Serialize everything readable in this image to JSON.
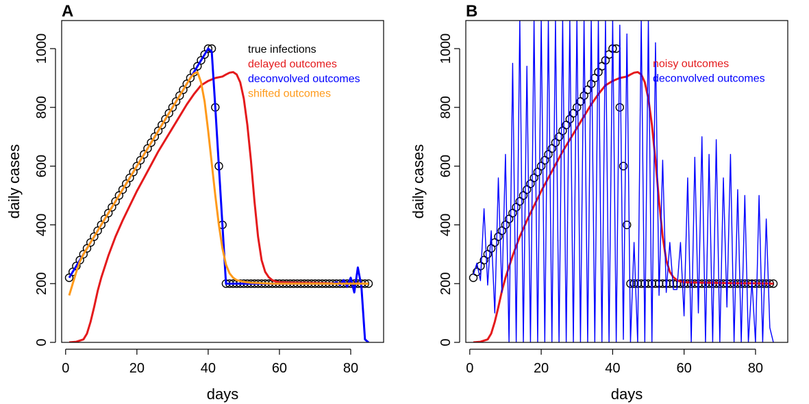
{
  "chart_data": [
    {
      "panel_label": "A",
      "type": "line",
      "xlabel": "days",
      "ylabel": "daily cases",
      "xlim": [
        1,
        85
      ],
      "ylim": [
        0,
        1100
      ],
      "xticks": [
        0,
        20,
        40,
        60,
        80
      ],
      "yticks": [
        0,
        200,
        400,
        600,
        800,
        1000
      ],
      "legend_position": "top-right",
      "legend": [
        {
          "label": "true infections",
          "color": "#000000"
        },
        {
          "label": "delayed outcomes",
          "color": "#e41a1c"
        },
        {
          "label": "deconvolved outcomes",
          "color": "#0000ff"
        },
        {
          "label": "shifted outcomes",
          "color": "#ff9a1a"
        }
      ],
      "series": [
        {
          "name": "true infections",
          "style": "points",
          "color": "#000000",
          "x": [
            1,
            2,
            3,
            4,
            5,
            6,
            7,
            8,
            9,
            10,
            11,
            12,
            13,
            14,
            15,
            16,
            17,
            18,
            19,
            20,
            21,
            22,
            23,
            24,
            25,
            26,
            27,
            28,
            29,
            30,
            31,
            32,
            33,
            34,
            35,
            36,
            37,
            38,
            39,
            40,
            41,
            42,
            43,
            44,
            45,
            46,
            47,
            48,
            49,
            50,
            51,
            52,
            53,
            54,
            55,
            56,
            57,
            58,
            59,
            60,
            61,
            62,
            63,
            64,
            65,
            66,
            67,
            68,
            69,
            70,
            71,
            72,
            73,
            74,
            75,
            76,
            77,
            78,
            79,
            80,
            81,
            82,
            83,
            84,
            85
          ],
          "y": [
            220,
            240,
            260,
            280,
            300,
            320,
            340,
            360,
            380,
            400,
            420,
            440,
            460,
            480,
            500,
            520,
            540,
            560,
            580,
            600,
            620,
            640,
            660,
            680,
            700,
            720,
            740,
            760,
            780,
            800,
            820,
            840,
            860,
            880,
            900,
            920,
            940,
            960,
            980,
            1000,
            1000,
            800,
            600,
            400,
            200,
            200,
            200,
            200,
            200,
            200,
            200,
            200,
            200,
            200,
            200,
            200,
            200,
            200,
            200,
            200,
            200,
            200,
            200,
            200,
            200,
            200,
            200,
            200,
            200,
            200,
            200,
            200,
            200,
            200,
            200,
            200,
            200,
            200,
            200,
            200,
            200,
            200,
            200,
            200,
            200
          ]
        },
        {
          "name": "delayed outcomes",
          "style": "line",
          "color": "#e41a1c",
          "x": [
            1,
            3,
            5,
            6,
            7,
            8,
            9,
            10,
            12,
            14,
            16,
            18,
            20,
            22,
            24,
            26,
            28,
            30,
            32,
            34,
            36,
            38,
            40,
            42,
            44,
            45,
            46,
            47,
            48,
            49,
            50,
            51,
            52,
            53,
            54,
            55,
            56,
            57,
            58,
            59,
            60,
            62,
            65,
            70,
            75,
            80,
            85
          ],
          "y": [
            0,
            2,
            10,
            30,
            70,
            120,
            175,
            220,
            295,
            360,
            415,
            465,
            515,
            560,
            605,
            650,
            690,
            730,
            770,
            810,
            845,
            875,
            890,
            900,
            905,
            912,
            918,
            920,
            912,
            885,
            830,
            740,
            620,
            480,
            360,
            280,
            240,
            222,
            212,
            207,
            205,
            204,
            203,
            202,
            201,
            201,
            200
          ]
        },
        {
          "name": "deconvolved outcomes",
          "style": "line",
          "color": "#0000ff",
          "x": [
            1,
            2,
            3,
            4,
            5,
            6,
            7,
            8,
            9,
            10,
            11,
            12,
            13,
            14,
            15,
            16,
            17,
            18,
            19,
            20,
            21,
            22,
            23,
            24,
            25,
            26,
            27,
            28,
            29,
            30,
            31,
            32,
            33,
            34,
            35,
            36,
            37,
            38,
            39,
            40,
            41,
            42,
            43,
            44,
            45,
            46,
            47,
            48,
            49,
            50,
            51,
            52,
            53,
            54,
            55,
            56,
            57,
            58,
            59,
            60,
            61,
            62,
            63,
            64,
            65,
            66,
            67,
            68,
            69,
            70,
            71,
            72,
            73,
            74,
            75,
            76,
            77,
            78,
            79,
            80,
            81,
            82,
            83,
            84,
            85
          ],
          "y": [
            220,
            240,
            260,
            280,
            300,
            320,
            340,
            360,
            380,
            400,
            420,
            440,
            460,
            480,
            500,
            520,
            540,
            560,
            580,
            600,
            620,
            640,
            660,
            680,
            700,
            720,
            740,
            760,
            780,
            800,
            820,
            840,
            860,
            880,
            900,
            920,
            940,
            960,
            980,
            1000,
            990,
            800,
            600,
            400,
            200,
            200,
            200,
            200,
            200,
            200,
            200,
            200,
            200,
            200,
            200,
            200,
            200,
            200,
            200,
            200,
            200,
            200,
            200,
            200,
            200,
            200,
            200,
            200,
            200,
            200,
            200,
            200,
            200,
            200,
            200,
            205,
            195,
            212,
            190,
            220,
            170,
            255,
            190,
            10,
            0
          ]
        },
        {
          "name": "shifted outcomes",
          "style": "line",
          "color": "#ff9a1a",
          "x": [
            1,
            2,
            3,
            4,
            5,
            6,
            7,
            8,
            9,
            10,
            11,
            12,
            13,
            14,
            15,
            16,
            17,
            18,
            19,
            20,
            21,
            22,
            23,
            24,
            25,
            26,
            27,
            28,
            29,
            30,
            31,
            32,
            33,
            34,
            35,
            36,
            37,
            38,
            39,
            40,
            41,
            42,
            43,
            44,
            45,
            46,
            47,
            48,
            50,
            52,
            54,
            56,
            58,
            60,
            65,
            70,
            75,
            80,
            85
          ],
          "y": [
            160,
            200,
            240,
            275,
            300,
            320,
            340,
            360,
            380,
            400,
            420,
            440,
            460,
            480,
            500,
            520,
            540,
            560,
            580,
            600,
            620,
            640,
            660,
            680,
            700,
            720,
            740,
            760,
            780,
            800,
            820,
            840,
            860,
            880,
            900,
            915,
            920,
            885,
            820,
            720,
            610,
            500,
            400,
            320,
            265,
            235,
            220,
            212,
            206,
            203,
            202,
            201,
            200,
            200,
            200,
            200,
            200,
            200,
            200
          ]
        }
      ]
    },
    {
      "panel_label": "B",
      "type": "line",
      "xlabel": "days",
      "ylabel": "daily cases",
      "xlim": [
        1,
        85
      ],
      "ylim": [
        0,
        1100
      ],
      "xticks": [
        0,
        20,
        40,
        60,
        80
      ],
      "yticks": [
        0,
        200,
        400,
        600,
        800,
        1000
      ],
      "legend_position": "top-right",
      "legend": [
        {
          "label": "noisy outcomes",
          "color": "#e41a1c"
        },
        {
          "label": "deconvolved outcomes",
          "color": "#0000ff"
        }
      ],
      "series": [
        {
          "name": "true infections",
          "style": "points",
          "color": "#000000",
          "x": [
            1,
            2,
            3,
            4,
            5,
            6,
            7,
            8,
            9,
            10,
            11,
            12,
            13,
            14,
            15,
            16,
            17,
            18,
            19,
            20,
            21,
            22,
            23,
            24,
            25,
            26,
            27,
            28,
            29,
            30,
            31,
            32,
            33,
            34,
            35,
            36,
            37,
            38,
            39,
            40,
            41,
            42,
            43,
            44,
            45,
            46,
            47,
            48,
            49,
            50,
            51,
            52,
            53,
            54,
            55,
            56,
            57,
            58,
            59,
            60,
            61,
            62,
            63,
            64,
            65,
            66,
            67,
            68,
            69,
            70,
            71,
            72,
            73,
            74,
            75,
            76,
            77,
            78,
            79,
            80,
            81,
            82,
            83,
            84,
            85
          ],
          "y": [
            220,
            240,
            260,
            280,
            300,
            320,
            340,
            360,
            380,
            400,
            420,
            440,
            460,
            480,
            500,
            520,
            540,
            560,
            580,
            600,
            620,
            640,
            660,
            680,
            700,
            720,
            740,
            760,
            780,
            800,
            820,
            840,
            860,
            880,
            900,
            920,
            940,
            960,
            980,
            1000,
            1000,
            800,
            600,
            400,
            200,
            200,
            200,
            200,
            200,
            200,
            200,
            200,
            200,
            200,
            200,
            200,
            200,
            200,
            200,
            200,
            200,
            200,
            200,
            200,
            200,
            200,
            200,
            200,
            200,
            200,
            200,
            200,
            200,
            200,
            200,
            200,
            200,
            200,
            200,
            200,
            200,
            200,
            200,
            200,
            200
          ]
        },
        {
          "name": "noisy outcomes",
          "style": "line",
          "color": "#e41a1c",
          "x": [
            1,
            3,
            5,
            6,
            7,
            8,
            9,
            10,
            12,
            14,
            16,
            18,
            20,
            22,
            24,
            26,
            28,
            30,
            32,
            34,
            36,
            38,
            40,
            42,
            44,
            45,
            46,
            47,
            48,
            49,
            50,
            51,
            52,
            53,
            54,
            55,
            56,
            57,
            58,
            59,
            60,
            62,
            65,
            70,
            75,
            80,
            85
          ],
          "y": [
            0,
            2,
            10,
            30,
            70,
            120,
            175,
            220,
            295,
            360,
            415,
            465,
            515,
            560,
            605,
            650,
            690,
            730,
            770,
            810,
            845,
            875,
            890,
            900,
            905,
            912,
            918,
            920,
            912,
            885,
            830,
            740,
            620,
            480,
            360,
            280,
            240,
            222,
            212,
            207,
            205,
            204,
            203,
            202,
            201,
            201,
            200
          ]
        },
        {
          "name": "deconvolved outcomes",
          "style": "line",
          "color": "#0000ff",
          "x": [
            1,
            2,
            3,
            4,
            5,
            6,
            7,
            8,
            9,
            10,
            11,
            12,
            13,
            14,
            15,
            16,
            17,
            18,
            19,
            20,
            21,
            22,
            23,
            24,
            25,
            26,
            27,
            28,
            29,
            30,
            31,
            32,
            33,
            34,
            35,
            36,
            37,
            38,
            39,
            40,
            41,
            42,
            43,
            44,
            45,
            46,
            47,
            48,
            49,
            50,
            51,
            52,
            53,
            54,
            55,
            56,
            57,
            58,
            59,
            60,
            61,
            62,
            63,
            64,
            65,
            66,
            67,
            68,
            69,
            70,
            71,
            72,
            73,
            74,
            75,
            76,
            77,
            78,
            79,
            80,
            81,
            82,
            83,
            84,
            85
          ],
          "y": [
            230,
            270,
            210,
            455,
            195,
            380,
            100,
            560,
            170,
            640,
            0,
            950,
            0,
            1100,
            0,
            940,
            0,
            1100,
            0,
            1100,
            0,
            1100,
            0,
            1100,
            0,
            1100,
            0,
            1100,
            0,
            1100,
            0,
            1100,
            0,
            1100,
            0,
            1100,
            0,
            1100,
            0,
            1100,
            0,
            1080,
            10,
            1050,
            0,
            340,
            0,
            1100,
            0,
            1100,
            0,
            1020,
            160,
            620,
            170,
            340,
            180,
            180,
            340,
            90,
            560,
            0,
            630,
            100,
            700,
            0,
            640,
            0,
            690,
            0,
            560,
            120,
            640,
            0,
            520,
            0,
            500,
            0,
            210,
            0,
            500,
            0,
            420,
            50,
            0
          ]
        }
      ]
    }
  ]
}
